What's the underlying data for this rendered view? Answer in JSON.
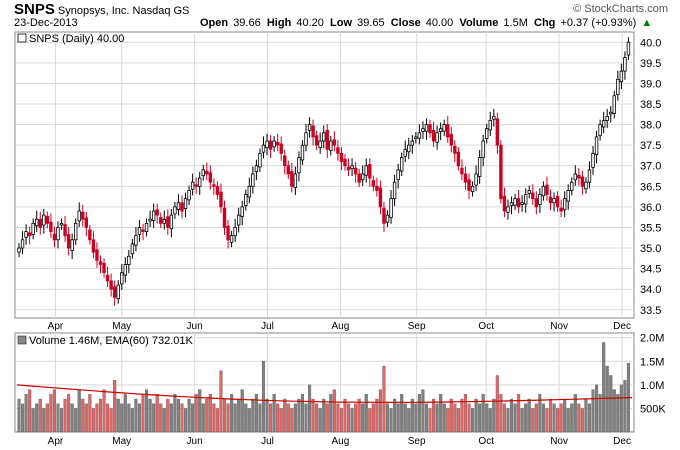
{
  "header": {
    "symbol": "SNPS",
    "company": "Synopsys, Inc.",
    "exchange": "Nasdaq GS",
    "date": "23-Dec-2013",
    "watermark": "© StockCharts.com",
    "quote": {
      "open_label": "Open",
      "open": "39.66",
      "high_label": "High",
      "high": "40.20",
      "low_label": "Low",
      "low": "39.65",
      "close_label": "Close",
      "close": "40.00",
      "volume_label": "Volume",
      "volume": "1.5M",
      "chg_label": "Chg",
      "chg": "+0.37 (+0.93%)"
    }
  },
  "colors": {
    "up": "#000000",
    "down": "#cc0022",
    "volume_up": "#808080",
    "volume_down": "#e06666",
    "ema": "#cc0000",
    "grid": "#d9d9d9"
  },
  "chart_data": [
    {
      "type": "candlestick",
      "legend": "SNPS (Daily) 40.00",
      "ylim": [
        33.3,
        40.25
      ],
      "y_ticks": [
        "33.5",
        "34.0",
        "34.5",
        "35.0",
        "35.5",
        "36.0",
        "36.5",
        "37.0",
        "37.5",
        "38.0",
        "38.5",
        "39.0",
        "39.5",
        "40.0"
      ],
      "x_ticks": [
        "Apr",
        "May",
        "Jun",
        "Jul",
        "Aug",
        "Sep",
        "Oct",
        "Nov",
        "Dec"
      ],
      "grid": true,
      "close_series": [
        35.0,
        35.2,
        35.4,
        35.3,
        35.6,
        35.7,
        35.5,
        35.8,
        35.6,
        35.4,
        35.2,
        35.5,
        35.6,
        35.3,
        35.0,
        35.2,
        35.6,
        35.9,
        35.7,
        35.5,
        35.2,
        34.9,
        34.7,
        34.6,
        34.4,
        34.2,
        34.0,
        33.8,
        34.1,
        34.4,
        34.6,
        34.8,
        35.1,
        35.3,
        35.5,
        35.4,
        35.6,
        35.7,
        35.9,
        35.8,
        35.6,
        35.7,
        35.5,
        35.8,
        36.0,
        36.1,
        35.9,
        36.2,
        36.4,
        36.6,
        36.5,
        36.7,
        36.9,
        36.8,
        36.6,
        36.5,
        36.3,
        36.0,
        35.5,
        35.2,
        35.3,
        35.5,
        35.8,
        36.0,
        36.3,
        36.5,
        36.8,
        37.0,
        37.3,
        37.5,
        37.6,
        37.4,
        37.6,
        37.5,
        37.3,
        37.0,
        36.8,
        36.5,
        36.8,
        37.2,
        37.5,
        37.8,
        38.0,
        37.7,
        37.5,
        37.6,
        37.8,
        37.4,
        37.6,
        37.5,
        37.3,
        37.1,
        37.0,
        36.9,
        37.0,
        36.8,
        36.6,
        36.8,
        37.0,
        36.7,
        36.5,
        36.4,
        36.0,
        35.6,
        35.8,
        36.2,
        36.6,
        36.9,
        37.2,
        37.4,
        37.5,
        37.6,
        37.7,
        37.8,
        37.9,
        38.0,
        37.8,
        37.6,
        37.8,
        37.9,
        38.0,
        37.7,
        37.5,
        37.3,
        37.0,
        36.8,
        36.6,
        36.4,
        36.5,
        36.8,
        37.2,
        37.6,
        37.9,
        38.1,
        38.2,
        37.5,
        36.2,
        35.9,
        36.0,
        36.1,
        36.2,
        36.0,
        36.1,
        36.3,
        36.4,
        36.2,
        36.0,
        36.3,
        36.5,
        36.3,
        36.1,
        36.2,
        36.0,
        35.9,
        36.2,
        36.4,
        36.6,
        36.8,
        36.7,
        36.5,
        36.6,
        36.9,
        37.3,
        37.7,
        38.0,
        38.1,
        38.2,
        38.3,
        38.7,
        39.1,
        39.3,
        39.63,
        40.0
      ]
    },
    {
      "type": "bar",
      "legend": "Volume 1.46M, EMA(60) 732.01K",
      "ylim": [
        0,
        2.1
      ],
      "y_ticks": [
        "500K",
        "1.0M",
        "1.5M",
        "2.0M"
      ],
      "x_ticks": [
        "Apr",
        "May",
        "Jun",
        "Jul",
        "Aug",
        "Sep",
        "Oct",
        "Nov",
        "Dec"
      ],
      "ema_start": 1.0,
      "ema_end": 0.73,
      "volume_millions": [
        0.7,
        0.6,
        0.8,
        0.9,
        0.5,
        0.6,
        0.7,
        0.5,
        0.6,
        0.8,
        0.9,
        0.6,
        0.5,
        0.7,
        0.8,
        0.6,
        0.5,
        0.9,
        0.7,
        0.6,
        0.8,
        0.5,
        0.6,
        0.7,
        0.9,
        0.6,
        0.5,
        1.1,
        0.7,
        0.6,
        0.8,
        0.6,
        0.5,
        0.7,
        0.6,
        0.8,
        0.9,
        0.7,
        0.6,
        0.8,
        0.6,
        0.5,
        0.7,
        0.6,
        0.8,
        0.7,
        0.6,
        0.5,
        0.7,
        0.6,
        0.8,
        0.9,
        0.6,
        0.7,
        0.8,
        0.6,
        0.5,
        1.3,
        0.7,
        0.6,
        0.8,
        0.6,
        0.7,
        0.9,
        0.6,
        0.5,
        0.7,
        0.8,
        0.6,
        1.5,
        0.7,
        0.6,
        0.8,
        0.6,
        0.5,
        0.7,
        0.6,
        0.5,
        0.6,
        0.7,
        0.8,
        0.6,
        1.0,
        0.7,
        0.6,
        0.5,
        0.7,
        0.6,
        0.8,
        0.9,
        0.6,
        0.5,
        0.7,
        0.6,
        0.5,
        0.6,
        0.7,
        0.6,
        0.8,
        0.5,
        0.6,
        0.7,
        0.9,
        1.4,
        0.6,
        0.5,
        0.7,
        0.6,
        0.8,
        0.6,
        0.5,
        0.7,
        0.6,
        0.8,
        0.9,
        0.6,
        0.5,
        0.7,
        0.6,
        0.8,
        0.6,
        0.5,
        0.7,
        0.6,
        0.5,
        0.7,
        0.8,
        0.6,
        0.5,
        0.7,
        0.6,
        0.8,
        0.6,
        0.5,
        0.7,
        1.2,
        0.8,
        0.6,
        0.5,
        0.7,
        0.6,
        0.8,
        0.5,
        0.6,
        0.7,
        0.5,
        0.6,
        0.8,
        0.6,
        0.5,
        0.7,
        0.6,
        0.5,
        0.6,
        0.7,
        0.5,
        0.6,
        0.8,
        0.6,
        0.5,
        0.7,
        0.6,
        0.9,
        1.0,
        0.8,
        1.9,
        1.4,
        1.2,
        0.9,
        0.8,
        1.0,
        1.1,
        1.46
      ]
    }
  ]
}
